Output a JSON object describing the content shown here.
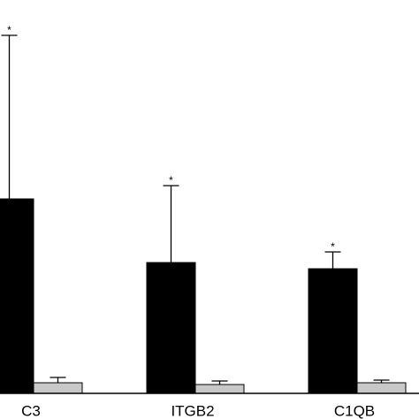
{
  "chart_data": {
    "type": "bar",
    "categories": [
      "C3",
      "ITGB2",
      "C1QB"
    ],
    "series": [
      {
        "color": "#000000",
        "values": [
          220,
          148,
          141
        ],
        "errors": [
          185,
          87,
          19
        ],
        "annotations": [
          "*",
          "*",
          "*"
        ]
      },
      {
        "color": "#c8c8c8",
        "values": [
          12,
          10,
          12
        ],
        "errors": [
          6,
          4,
          3
        ]
      }
    ],
    "ylim": [
      0,
      445
    ]
  }
}
